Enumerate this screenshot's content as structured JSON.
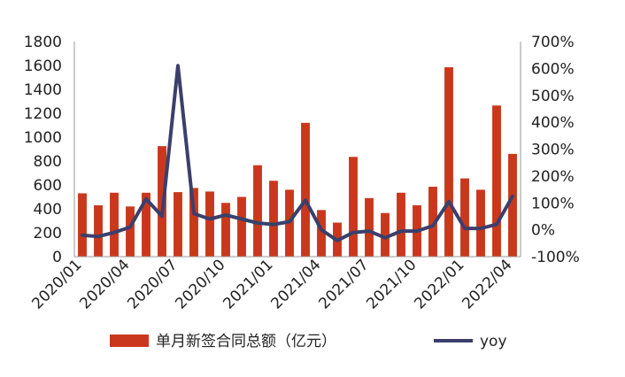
{
  "chart_data": {
    "type": "bar",
    "categories": [
      "2020/01",
      "2020/02",
      "2020/03",
      "2020/04",
      "2020/05",
      "2020/06",
      "2020/07",
      "2020/08",
      "2020/09",
      "2020/10",
      "2020/11",
      "2020/12",
      "2021/01",
      "2021/02",
      "2021/03",
      "2021/04",
      "2021/05",
      "2021/06",
      "2021/07",
      "2021/08",
      "2021/09",
      "2021/10",
      "2021/11",
      "2021/12",
      "2022/01",
      "2022/02",
      "2022/03",
      "2022/04"
    ],
    "x_tick_labels": [
      "2020/01",
      "2020/04",
      "2020/07",
      "2020/10",
      "2021/01",
      "2021/04",
      "2021/07",
      "2021/10",
      "2022/01",
      "2022/04"
    ],
    "series": [
      {
        "name": "单月新签合同总额（亿元）",
        "type": "bar",
        "axis": "left",
        "color": "#c9381d",
        "values": [
          530,
          430,
          535,
          420,
          535,
          925,
          540,
          575,
          545,
          450,
          500,
          765,
          635,
          560,
          1120,
          390,
          285,
          835,
          490,
          365,
          535,
          430,
          585,
          1585,
          655,
          560,
          1265,
          860
        ]
      },
      {
        "name": "yoy",
        "type": "line",
        "axis": "right",
        "color": "#3b3f6b",
        "values": [
          -20,
          -25,
          -10,
          10,
          115,
          50,
          610,
          60,
          40,
          55,
          40,
          25,
          20,
          30,
          110,
          0,
          -40,
          -10,
          -5,
          -30,
          -5,
          -5,
          15,
          105,
          5,
          5,
          20,
          125
        ]
      }
    ],
    "y_left": {
      "min": 0,
      "max": 1800,
      "ticks": [
        "0",
        "200",
        "400",
        "600",
        "800",
        "1000",
        "1200",
        "1400",
        "1600",
        "1800"
      ]
    },
    "y_right": {
      "min": -100,
      "max": 700,
      "ticks": [
        "-100%",
        "0%",
        "100%",
        "200%",
        "300%",
        "400%",
        "500%",
        "600%",
        "700%"
      ]
    },
    "legend_position": "bottom",
    "grid": false
  }
}
